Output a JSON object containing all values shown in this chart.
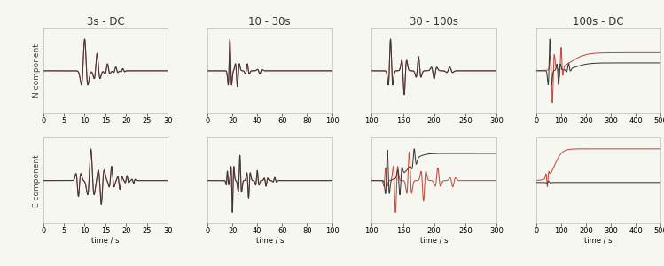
{
  "col_titles": [
    "3s - DC",
    "10 - 30s",
    "30 - 100s",
    "100s - DC"
  ],
  "row_labels": [
    "N component",
    "E component"
  ],
  "xlabel": "time / s",
  "dark_color": "#3a3a3a",
  "red_color": "#c0392b",
  "bg_color": "#f7f7f2",
  "title_fontsize": 8.5,
  "axis_fontsize": 6,
  "label_fontsize": 6.5
}
